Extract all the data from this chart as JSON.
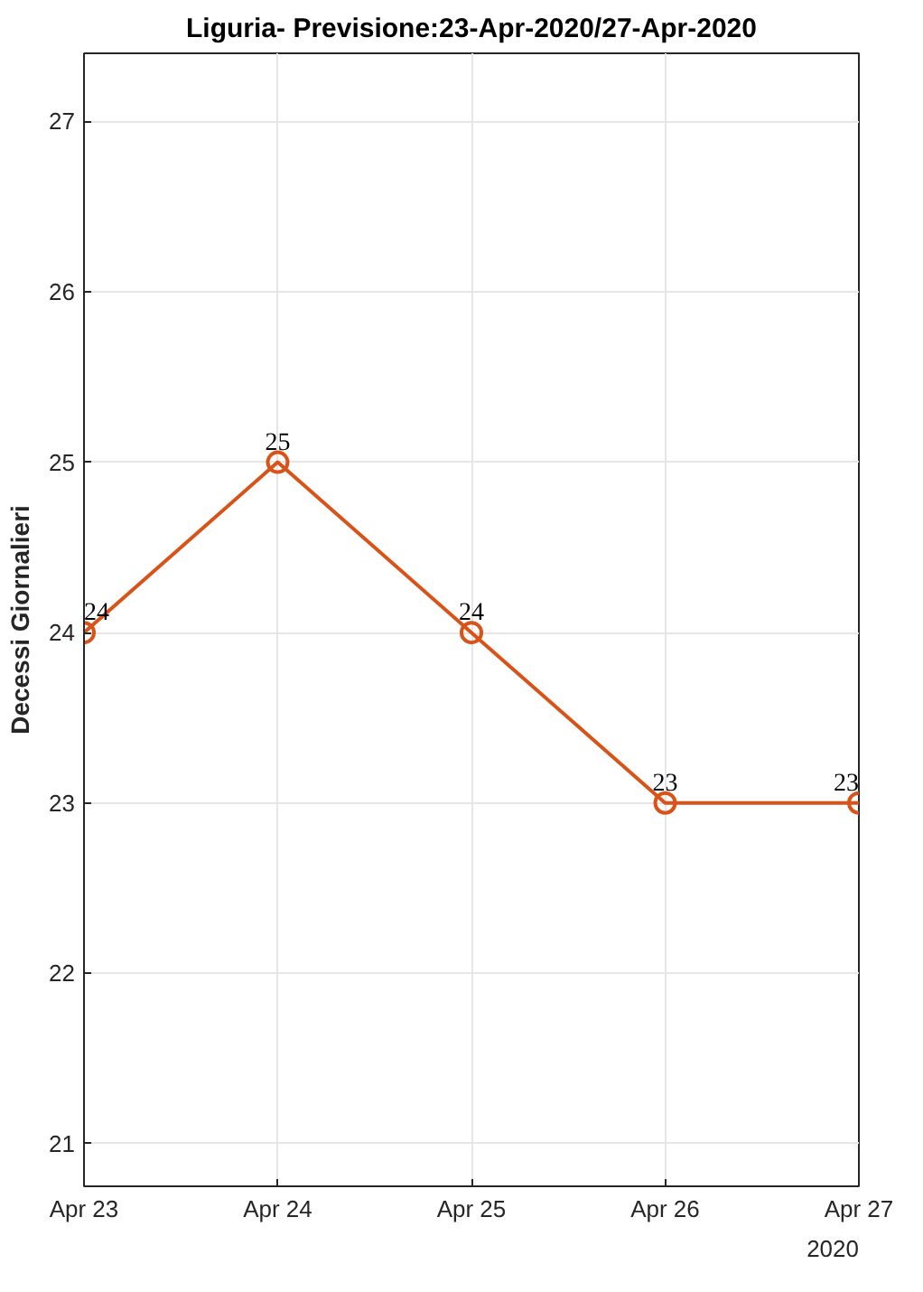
{
  "chart_data": {
    "type": "line",
    "title": "Liguria- Previsione:23-Apr-2020/27-Apr-2020",
    "ylabel": "Decessi Giornalieri",
    "x": [
      "2020-04-23",
      "2020-04-24",
      "2020-04-25",
      "2020-04-26",
      "2020-04-27"
    ],
    "series": [
      {
        "color": "#d95319",
        "values": [
          24,
          25,
          24,
          23,
          23
        ]
      }
    ],
    "xlim": [
      "2020-04-23",
      "2020-04-27"
    ],
    "xticks": [
      {
        "value": "2020-04-23",
        "label": "Apr 23"
      },
      {
        "value": "2020-04-24",
        "label": "Apr 24"
      },
      {
        "value": "2020-04-25",
        "label": "Apr 25"
      },
      {
        "value": "2020-04-26",
        "label": "Apr 26"
      },
      {
        "value": "2020-04-27",
        "label": "Apr 27"
      }
    ],
    "ylim": [
      20.75,
      27.4
    ],
    "yticks": [
      21,
      22,
      23,
      24,
      25,
      26,
      27
    ],
    "annotations": [
      "2020"
    ],
    "data_labels": true,
    "marker": "circle",
    "line_style": "solid",
    "grid": true
  }
}
